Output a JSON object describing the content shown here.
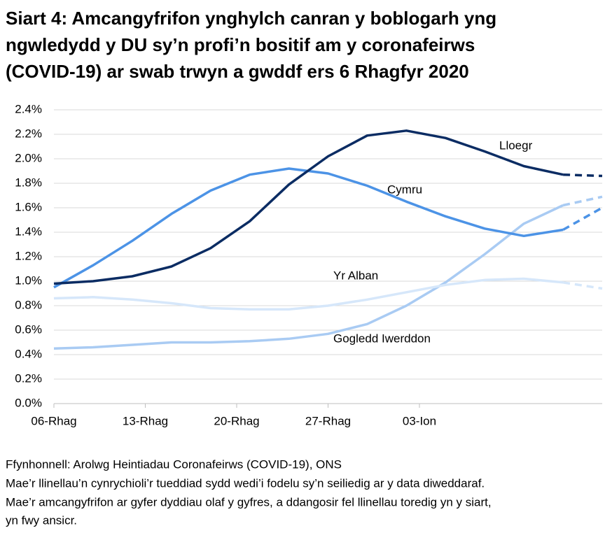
{
  "chart_data": {
    "type": "line",
    "title": [
      "Siart 4: Amcangyfrifon ynghylch canran y boblogarh yng",
      "ngwledydd y DU sy’n profi’n bositif am y coronafeirws",
      "(COVID-19) ar swab trwyn a gwddf ers 6 Rhagfyr 2020"
    ],
    "x": [
      0,
      3,
      6,
      9,
      12,
      15,
      18,
      21,
      24,
      27,
      30,
      33,
      36,
      39,
      42
    ],
    "xlim": [
      0,
      42
    ],
    "xticks": [
      {
        "value": 0,
        "label": "06-Rhag"
      },
      {
        "value": 7,
        "label": "13-Rhag"
      },
      {
        "value": 14,
        "label": "20-Rhag"
      },
      {
        "value": 21,
        "label": "27-Rhag"
      },
      {
        "value": 28,
        "label": "03-Ion"
      }
    ],
    "ylim": [
      0,
      2.4
    ],
    "yticks": [
      {
        "value": 0,
        "label": "0.0%"
      },
      {
        "value": 0.2,
        "label": "0.2%"
      },
      {
        "value": 0.4,
        "label": "0.4%"
      },
      {
        "value": 0.6,
        "label": "0.6%"
      },
      {
        "value": 0.8,
        "label": "0.8%"
      },
      {
        "value": 1.0,
        "label": "1.0%"
      },
      {
        "value": 1.2,
        "label": "1.2%"
      },
      {
        "value": 1.4,
        "label": "1.4%"
      },
      {
        "value": 1.6,
        "label": "1.6%"
      },
      {
        "value": 1.8,
        "label": "1.8%"
      },
      {
        "value": 2.0,
        "label": "2.0%"
      },
      {
        "value": 2.2,
        "label": "2.2%"
      },
      {
        "value": 2.4,
        "label": "2.4%"
      }
    ],
    "grid": true,
    "dashed_from_x": 39,
    "series": [
      {
        "name": "Lloegr",
        "color": "#0b2c63",
        "values": [
          0.98,
          1.0,
          1.04,
          1.12,
          1.27,
          1.49,
          1.79,
          2.02,
          2.19,
          2.23,
          2.17,
          2.06,
          1.94,
          1.87,
          1.86
        ]
      },
      {
        "name": "Cymru",
        "color": "#4c93e6",
        "values": [
          0.95,
          1.13,
          1.33,
          1.55,
          1.74,
          1.87,
          1.92,
          1.88,
          1.78,
          1.65,
          1.53,
          1.43,
          1.37,
          1.42,
          1.6
        ]
      },
      {
        "name": "Yr Alban",
        "color": "#d6e7fa",
        "values": [
          0.86,
          0.87,
          0.85,
          0.82,
          0.78,
          0.77,
          0.77,
          0.8,
          0.85,
          0.91,
          0.97,
          1.01,
          1.02,
          0.99,
          0.94
        ]
      },
      {
        "name": "Gogledd Iwerddon",
        "color": "#a9cbf3",
        "values": [
          0.45,
          0.46,
          0.48,
          0.5,
          0.5,
          0.51,
          0.53,
          0.57,
          0.65,
          0.8,
          0.99,
          1.22,
          1.47,
          1.62,
          1.69
        ]
      }
    ],
    "notes": [
      "Ffynhonnell: Arolwg Heintiadau Coronafeirws (COVID-19), ONS",
      "Mae’r llinellau’n cynrychioli’r tueddiad sydd wedi’i fodelu sy’n seiliedig ar y data diweddaraf.",
      "Mae’r amcangyfrifon ar gyfer dyddiau olaf y gyfres, a ddangosir fel llinellau toredig yn y siart,",
      "yn fwy ansicr."
    ]
  }
}
